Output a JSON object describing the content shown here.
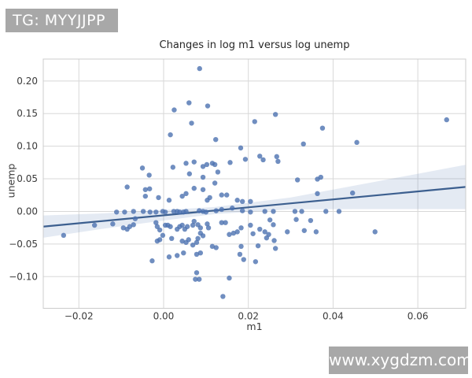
{
  "badge": {
    "label": "TG: MYYJJPP",
    "bg": "#a8a8a8",
    "text_color": "#ffffff"
  },
  "watermark": {
    "label": "www.xygdzm.com",
    "bg": "#a8a8a8",
    "text_color": "#ffffff"
  },
  "chart_data": {
    "type": "scatter",
    "title": "Changes in log m1 versus log unemp",
    "xlabel": "m1",
    "ylabel": "unemp",
    "xlim": [
      -0.0284,
      0.0713
    ],
    "ylim": [
      -0.1486,
      0.2336
    ],
    "xticks": {
      "values": [
        -0.02,
        0.0,
        0.02,
        0.04,
        0.06
      ],
      "labels": [
        "−0.02",
        "0.00",
        "0.02",
        "0.04",
        "0.06"
      ]
    },
    "yticks": {
      "values": [
        0.2,
        0.15,
        0.1,
        0.05,
        0.0,
        -0.05,
        -0.1
      ],
      "labels": [
        "0.20",
        "0.15",
        "0.10",
        "0.05",
        "0.00",
        "−0.05",
        "−0.10"
      ]
    },
    "grid": true,
    "legend": "none",
    "colors": {
      "point": "#4c72b0",
      "line": "#3c5f8f",
      "band": "#4c72b0",
      "grid": "#d8d8d8",
      "spine": "#cccccc",
      "text": "#3a3a3a"
    },
    "regression_line": {
      "x": [
        -0.0284,
        0.0713
      ],
      "y": [
        -0.0233,
        0.0375
      ]
    },
    "confidence_band": {
      "x": [
        -0.0284,
        -0.015,
        0.0,
        0.012,
        0.03,
        0.05,
        0.0713
      ],
      "upper": [
        -0.0063,
        -0.0032,
        0.002,
        0.0068,
        0.0213,
        0.0455,
        0.0715
      ],
      "lower": [
        -0.0403,
        -0.0272,
        -0.014,
        -0.0042,
        0.0033,
        0.0035,
        0.0035
      ]
    },
    "points": [
      [
        0.0085,
        0.219
      ],
      [
        0.006,
        0.1665
      ],
      [
        0.0104,
        0.1617
      ],
      [
        0.0025,
        0.1556
      ],
      [
        0.0066,
        0.1353
      ],
      [
        0.0215,
        0.1377
      ],
      [
        0.0016,
        0.1175
      ],
      [
        0.0123,
        0.1102
      ],
      [
        0.0182,
        0.0973
      ],
      [
        0.0193,
        0.0799
      ],
      [
        -0.005,
        0.0665
      ],
      [
        -0.0034,
        0.0556
      ],
      [
        0.0053,
        0.0738
      ],
      [
        0.0072,
        0.0758
      ],
      [
        0.0093,
        0.0689
      ],
      [
        0.0102,
        0.0718
      ],
      [
        0.0115,
        0.0738
      ],
      [
        0.0121,
        0.0718
      ],
      [
        0.0157,
        0.075
      ],
      [
        0.0061,
        0.0576
      ],
      [
        0.0093,
        0.0524
      ],
      [
        0.0128,
        0.0604
      ],
      [
        0.0022,
        0.0677
      ],
      [
        0.0264,
        0.1487
      ],
      [
        0.0375,
        0.1277
      ],
      [
        0.0668,
        0.1405
      ],
      [
        0.033,
        0.1034
      ],
      [
        0.0456,
        0.1058
      ],
      [
        0.0227,
        0.0847
      ],
      [
        0.0235,
        0.0791
      ],
      [
        0.0267,
        0.084
      ],
      [
        0.027,
        0.0767
      ],
      [
        0.0316,
        0.0483
      ],
      [
        0.0363,
        0.0495
      ],
      [
        0.0371,
        0.0524
      ],
      [
        -0.0086,
        0.0374
      ],
      [
        -0.0043,
        0.0334
      ],
      [
        -0.0033,
        0.0346
      ],
      [
        -0.0043,
        0.0233
      ],
      [
        -0.0012,
        0.0212
      ],
      [
        0.0013,
        0.0172
      ],
      [
        0.0044,
        0.0233
      ],
      [
        0.0053,
        0.0273
      ],
      [
        0.0072,
        0.0354
      ],
      [
        0.0093,
        0.0334
      ],
      [
        0.0103,
        0.0172
      ],
      [
        0.0109,
        0.0212
      ],
      [
        0.0121,
        0.0434
      ],
      [
        0.0137,
        0.0252
      ],
      [
        0.0149,
        0.0252
      ],
      [
        0.0174,
        0.0172
      ],
      [
        0.0186,
        0.0152
      ],
      [
        0.0205,
        0.0152
      ],
      [
        -0.0111,
        -0.001
      ],
      [
        -0.0092,
        -0.001
      ],
      [
        -0.0071,
        0.0
      ],
      [
        -0.0067,
        -0.0112
      ],
      [
        -0.0048,
        0.0
      ],
      [
        -0.0032,
        -0.001
      ],
      [
        -0.0018,
        -0.001
      ],
      [
        -0.0002,
        0.0
      ],
      [
        0.0004,
        -0.001
      ],
      [
        0.0024,
        0.0
      ],
      [
        0.0032,
        0.0
      ],
      [
        0.0038,
        -0.001
      ],
      [
        0.0047,
        -0.001
      ],
      [
        0.0053,
        0.0
      ],
      [
        0.0084,
        0.001
      ],
      [
        0.0093,
        0.0
      ],
      [
        0.01,
        -0.001
      ],
      [
        0.0124,
        0.001
      ],
      [
        0.0137,
        0.003
      ],
      [
        0.0162,
        0.0051
      ],
      [
        0.0186,
        0.001
      ],
      [
        0.0205,
        -0.001
      ],
      [
        -0.0236,
        -0.0367
      ],
      [
        -0.0163,
        -0.0212
      ],
      [
        -0.012,
        -0.0192
      ],
      [
        -0.0095,
        -0.0252
      ],
      [
        -0.0086,
        -0.0273
      ],
      [
        -0.008,
        -0.0233
      ],
      [
        -0.0071,
        -0.0204
      ],
      [
        -0.0018,
        -0.0172
      ],
      [
        -0.0015,
        -0.0233
      ],
      [
        -0.0009,
        -0.0285
      ],
      [
        -0.0002,
        -0.0367
      ],
      [
        0.0004,
        -0.0212
      ],
      [
        0.001,
        -0.0212
      ],
      [
        0.0016,
        -0.0233
      ],
      [
        0.0032,
        -0.0273
      ],
      [
        0.0038,
        -0.0233
      ],
      [
        0.0044,
        -0.0212
      ],
      [
        0.005,
        -0.0273
      ],
      [
        0.0056,
        -0.0233
      ],
      [
        0.0069,
        -0.0212
      ],
      [
        0.0072,
        -0.0152
      ],
      [
        0.0081,
        -0.0204
      ],
      [
        0.0087,
        -0.0252
      ],
      [
        0.0087,
        -0.0334
      ],
      [
        0.0093,
        -0.0374
      ],
      [
        0.0103,
        -0.0192
      ],
      [
        0.0106,
        -0.0252
      ],
      [
        0.0137,
        -0.0172
      ],
      [
        0.0146,
        -0.0172
      ],
      [
        0.0155,
        -0.0354
      ],
      [
        0.0165,
        -0.0334
      ],
      [
        0.0174,
        -0.0313
      ],
      [
        0.0183,
        -0.0252
      ],
      [
        0.0205,
        -0.0212
      ],
      [
        0.0211,
        -0.0342
      ],
      [
        -0.0015,
        -0.0455
      ],
      [
        -0.0009,
        -0.0434
      ],
      [
        0.0019,
        -0.0415
      ],
      [
        0.0044,
        -0.0455
      ],
      [
        0.0053,
        -0.0476
      ],
      [
        0.0059,
        -0.0434
      ],
      [
        0.0069,
        -0.0516
      ],
      [
        0.0078,
        -0.0476
      ],
      [
        0.0081,
        -0.0415
      ],
      [
        0.0115,
        -0.0536
      ],
      [
        0.0124,
        -0.0556
      ],
      [
        -0.0027,
        -0.0758
      ],
      [
        0.0013,
        -0.0698
      ],
      [
        0.0032,
        -0.0677
      ],
      [
        0.0047,
        -0.0637
      ],
      [
        0.0078,
        -0.0658
      ],
      [
        0.0087,
        -0.0637
      ],
      [
        0.0183,
        -0.0536
      ],
      [
        0.018,
        -0.0658
      ],
      [
        0.0189,
        -0.0738
      ],
      [
        0.0078,
        -0.094
      ],
      [
        0.0075,
        -0.1041
      ],
      [
        0.0084,
        -0.1041
      ],
      [
        0.0155,
        -0.1022
      ],
      [
        0.014,
        -0.1304
      ],
      [
        0.0363,
        0.0273
      ],
      [
        0.0446,
        0.0282
      ],
      [
        0.0239,
        0.0
      ],
      [
        0.0259,
        0.0
      ],
      [
        0.031,
        0.0
      ],
      [
        0.0326,
        0.0
      ],
      [
        0.0383,
        0.0
      ],
      [
        0.0414,
        0.0
      ],
      [
        0.0251,
        -0.0131
      ],
      [
        0.0313,
        -0.0124
      ],
      [
        0.0347,
        -0.014
      ],
      [
        0.0259,
        -0.0204
      ],
      [
        0.0227,
        -0.0273
      ],
      [
        0.0239,
        -0.0313
      ],
      [
        0.0248,
        -0.0354
      ],
      [
        0.0243,
        -0.0407
      ],
      [
        0.0261,
        -0.0447
      ],
      [
        0.0292,
        -0.0313
      ],
      [
        0.0332,
        -0.0294
      ],
      [
        0.036,
        -0.0313
      ],
      [
        0.0499,
        -0.0313
      ],
      [
        0.0223,
        -0.0528
      ],
      [
        0.0264,
        -0.0568
      ],
      [
        0.0217,
        -0.0771
      ]
    ]
  }
}
